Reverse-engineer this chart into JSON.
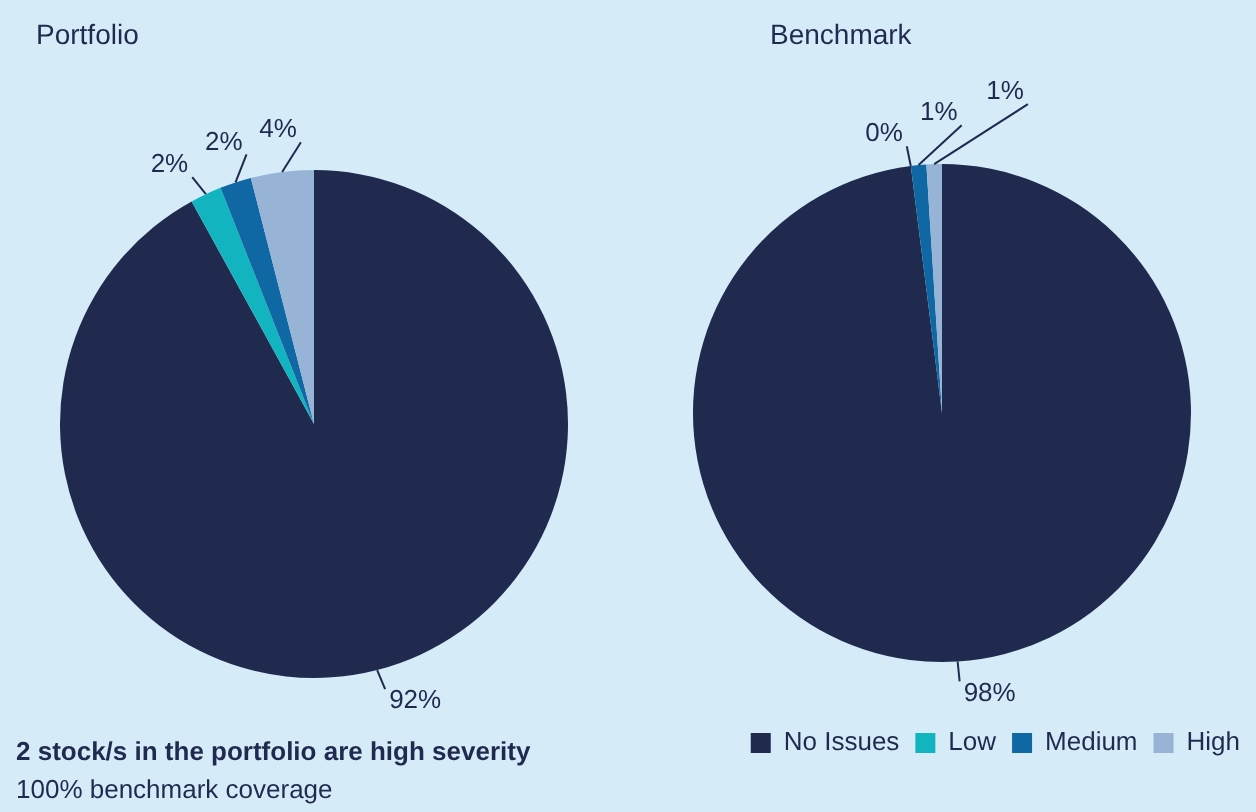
{
  "chart_data": [
    {
      "type": "pie",
      "title": "Portfolio",
      "categories": [
        null,
        null,
        null,
        null
      ],
      "values": [
        92,
        2,
        2,
        4
      ],
      "value_labels": [
        "92%",
        "2%",
        "2%",
        "4%"
      ],
      "colors": [
        "#1f2a4e",
        "#12b5bf",
        "#0f68a3",
        "#97b3d6"
      ],
      "legend": false,
      "annotations": [
        "2 stock/s in the portfolio are high severity",
        "100% benchmark coverage"
      ]
    },
    {
      "type": "pie",
      "title": "Benchmark",
      "categories": [
        "No Issues",
        "Low",
        "Medium",
        "High"
      ],
      "values": [
        98,
        0,
        1,
        1
      ],
      "value_labels": [
        "98%",
        "0%",
        "1%",
        "1%"
      ],
      "colors": [
        "#1f2a4e",
        "#12b5bf",
        "#0f68a3",
        "#97b3d6"
      ],
      "legend": "bottom right"
    }
  ]
}
